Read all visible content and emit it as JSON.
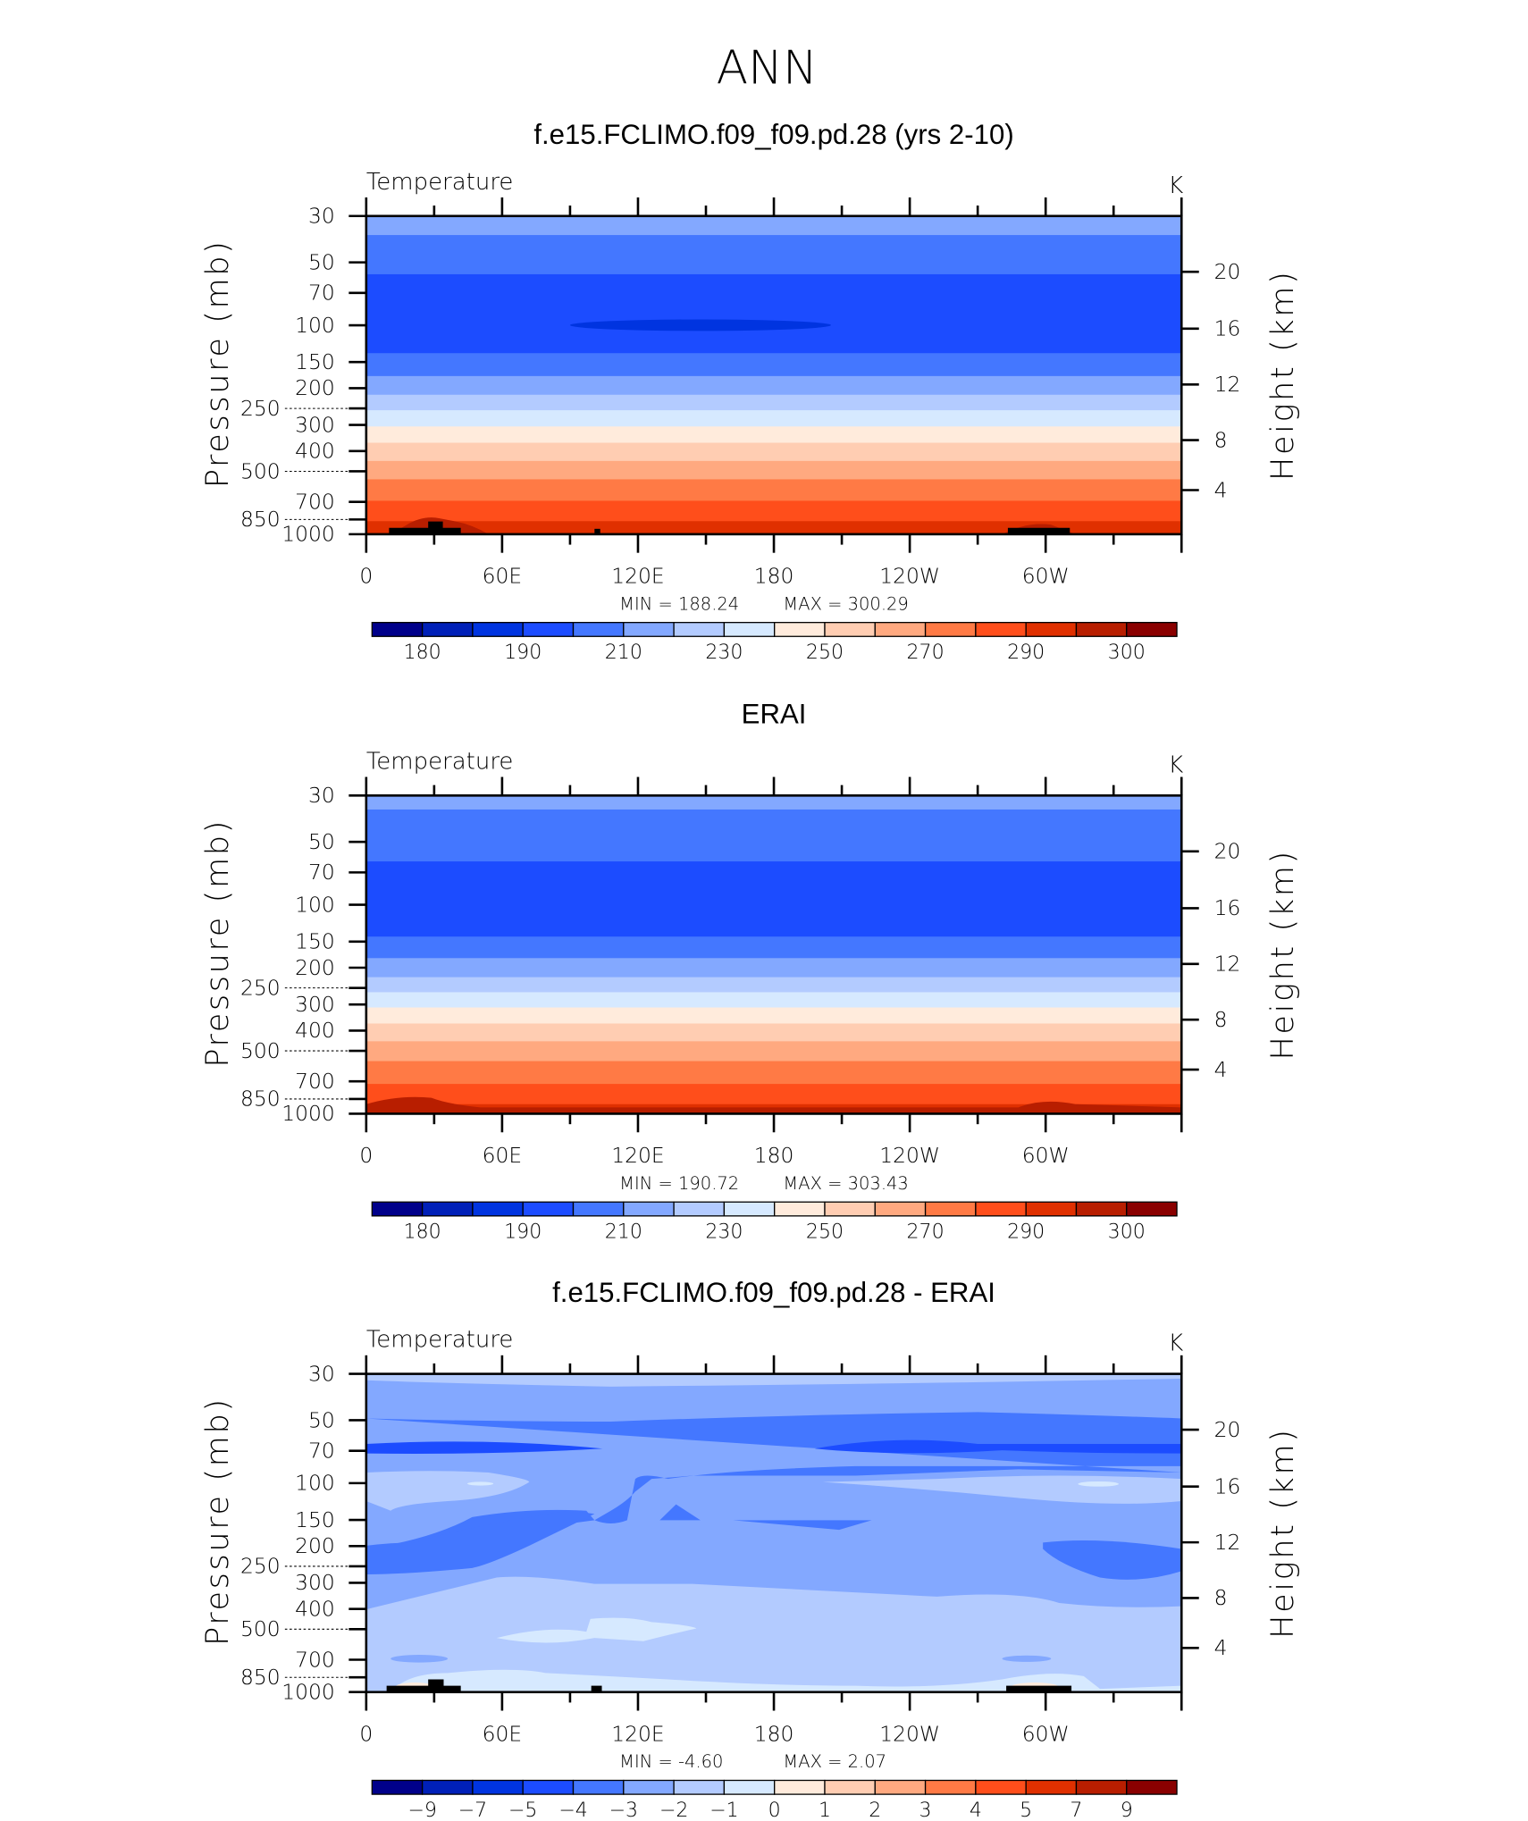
{
  "page_title": "ANN",
  "colors": {
    "palette": [
      "#00008a",
      "#0020b8",
      "#0034e0",
      "#1c4cff",
      "#4477ff",
      "#83a8ff",
      "#b3cbff",
      "#d6e9ff",
      "#ffebdc",
      "#ffcdb2",
      "#ffa980",
      "#ff7a45",
      "#ff4e1b",
      "#e03000",
      "#b81e00",
      "#8a0000"
    ],
    "terrain": "#000000"
  },
  "chart_data": [
    {
      "type": "heatmap",
      "title": "f.e15.FCLIMO.f09_f09.pd.28 (yrs 2-10)",
      "variable_label": "Temperature",
      "units_label": "K",
      "ylabel": "Pressure (mb)",
      "ylabel_right": "Height (km)",
      "yscale": "log",
      "ylim": [
        1000,
        30
      ],
      "y_ticks": [
        "30",
        "50",
        "70",
        "100",
        "150",
        "200",
        "250",
        "300",
        "400",
        "500",
        "700",
        "850",
        "1000"
      ],
      "y_right_ticks": [
        "20",
        "16",
        "12",
        "8",
        "4"
      ],
      "x_ticks": [
        "0",
        "60E",
        "120E",
        "180",
        "120W",
        "60W"
      ],
      "xlim": [
        0,
        360
      ],
      "min_label": "MIN =  188.24",
      "max_label": "MAX =  300.29",
      "colorbar_labels": [
        "180",
        "190",
        "210",
        "230",
        "250",
        "270",
        "290",
        "300"
      ],
      "bands_mb": [
        [
          30,
          37,
          5
        ],
        [
          37,
          57,
          4
        ],
        [
          57,
          136,
          3
        ],
        [
          136,
          175,
          4
        ],
        [
          175,
          215,
          5
        ],
        [
          215,
          255,
          6
        ],
        [
          255,
          305,
          7
        ],
        [
          305,
          365,
          8
        ],
        [
          365,
          446,
          9
        ],
        [
          446,
          546,
          10
        ],
        [
          546,
          692,
          11
        ],
        [
          692,
          866,
          12
        ],
        [
          866,
          1000,
          13
        ]
      ]
    },
    {
      "type": "heatmap",
      "title": "ERAI",
      "variable_label": "Temperature",
      "units_label": "K",
      "ylabel": "Pressure (mb)",
      "ylabel_right": "Height (km)",
      "yscale": "log",
      "ylim": [
        1000,
        30
      ],
      "y_ticks": [
        "30",
        "50",
        "70",
        "100",
        "150",
        "200",
        "250",
        "300",
        "400",
        "500",
        "700",
        "850",
        "1000"
      ],
      "y_right_ticks": [
        "20",
        "16",
        "12",
        "8",
        "4"
      ],
      "x_ticks": [
        "0",
        "60E",
        "120E",
        "180",
        "120W",
        "60W"
      ],
      "xlim": [
        0,
        360
      ],
      "min_label": "MIN =  190.72",
      "max_label": "MAX =  303.43",
      "colorbar_labels": [
        "180",
        "190",
        "210",
        "230",
        "250",
        "270",
        "290",
        "300"
      ],
      "bands_mb": [
        [
          30,
          35,
          5
        ],
        [
          35,
          62,
          4
        ],
        [
          62,
          142,
          3
        ],
        [
          142,
          180,
          4
        ],
        [
          180,
          222,
          5
        ],
        [
          222,
          262,
          6
        ],
        [
          262,
          310,
          7
        ],
        [
          310,
          370,
          8
        ],
        [
          370,
          450,
          9
        ],
        [
          450,
          560,
          10
        ],
        [
          560,
          720,
          11
        ],
        [
          720,
          900,
          12
        ],
        [
          900,
          975,
          13
        ],
        [
          975,
          1000,
          14
        ]
      ]
    },
    {
      "type": "heatmap",
      "title": "f.e15.FCLIMO.f09_f09.pd.28 - ERAI",
      "variable_label": "Temperature",
      "units_label": "K",
      "ylabel": "Pressure (mb)",
      "ylabel_right": "Height (km)",
      "yscale": "log",
      "ylim": [
        1000,
        30
      ],
      "y_ticks": [
        "30",
        "50",
        "70",
        "100",
        "150",
        "200",
        "250",
        "300",
        "400",
        "500",
        "700",
        "850",
        "1000"
      ],
      "y_right_ticks": [
        "20",
        "16",
        "12",
        "8",
        "4"
      ],
      "x_ticks": [
        "0",
        "60E",
        "120E",
        "180",
        "120W",
        "60W"
      ],
      "xlim": [
        0,
        360
      ],
      "min_label": "MIN =   -4.60",
      "max_label": "MAX =    2.07",
      "colorbar_labels": [
        "-9",
        "-7",
        "-5",
        "-4",
        "-3",
        "-2",
        "-1",
        "0",
        "1",
        "2",
        "3",
        "4",
        "5",
        "7",
        "9"
      ],
      "bands_mb": []
    }
  ]
}
